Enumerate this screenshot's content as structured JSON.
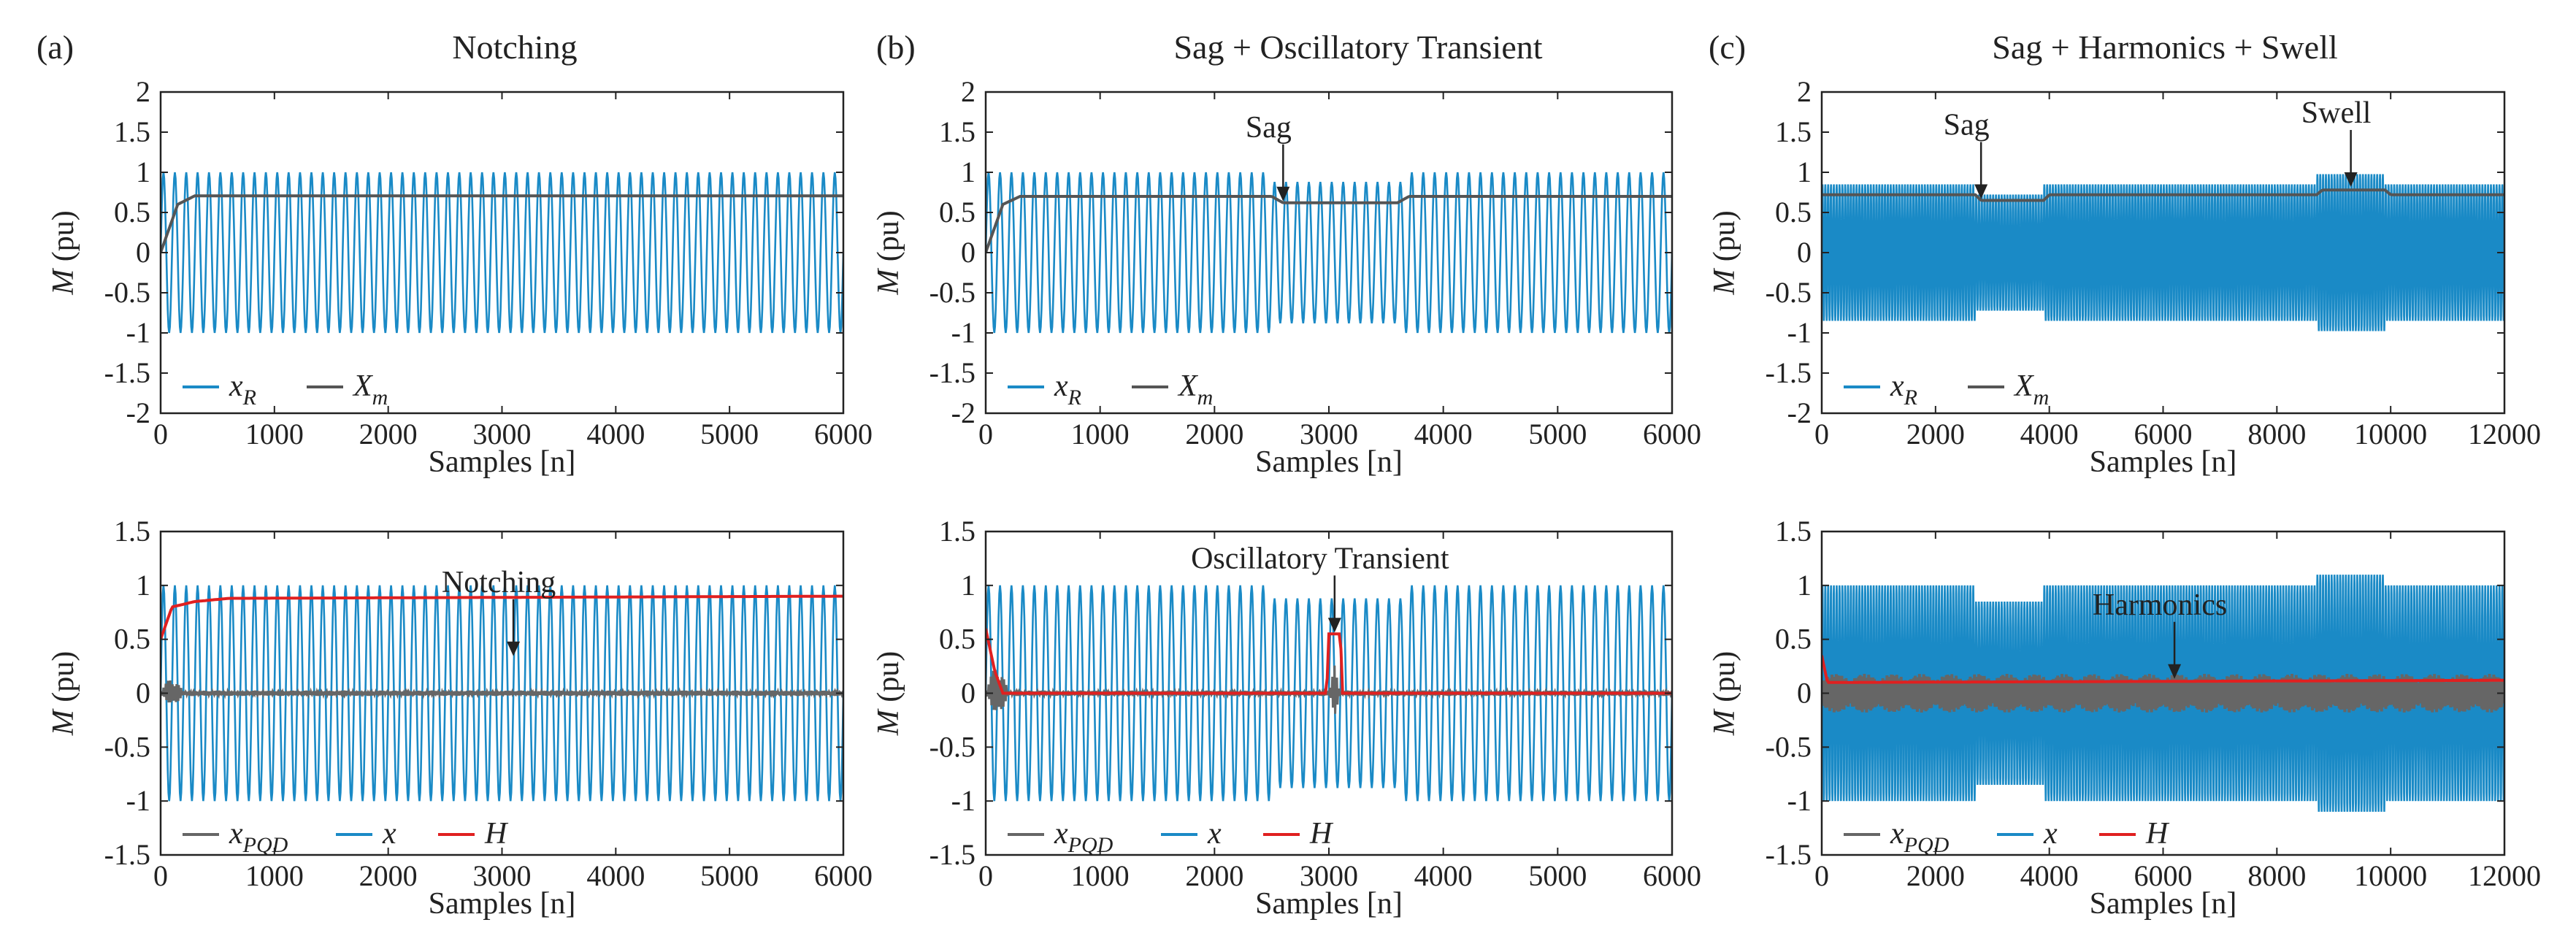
{
  "colors": {
    "xR": "#1a8ac6",
    "Xm": "#555555",
    "x": "#1a8ac6",
    "xPQD": "#666666",
    "H": "#e02020",
    "axis": "#222222"
  },
  "panels": [
    {
      "label": "(a)",
      "title": "Notching"
    },
    {
      "label": "(b)",
      "title": "Sag + Oscillatory Transient"
    },
    {
      "label": "(c)",
      "title": "Sag + Harmonics + Swell"
    }
  ],
  "legend_top": {
    "xR": "x",
    "xR_sub": "R",
    "Xm": "X",
    "Xm_sub": "m"
  },
  "legend_bottom": {
    "xPQD": "x",
    "xPQD_sub": "PQD",
    "x": "x",
    "H": "H"
  },
  "chart_data": [
    {
      "id": "a-top",
      "type": "line",
      "xlabel": "Samples [n]",
      "ylabel_italic": "M",
      "ylabel_rest": " (pu)",
      "xlim": [
        0,
        6000
      ],
      "ylim": [
        -2,
        2
      ],
      "xticks": [
        0,
        1000,
        2000,
        3000,
        4000,
        5000,
        6000
      ],
      "yticks": [
        2,
        1.5,
        1,
        0.5,
        0,
        -0.5,
        -1,
        -1.5,
        -2
      ],
      "series": [
        {
          "name": "xR",
          "kind": "sine",
          "amplitude": 1,
          "cycles": 60
        },
        {
          "name": "Xm",
          "kind": "envelope",
          "x": [
            0,
            150,
            300,
            6000
          ],
          "y": [
            0,
            0.6,
            0.707,
            0.707
          ]
        }
      ],
      "annotations": []
    },
    {
      "id": "a-bottom",
      "type": "line",
      "xlabel": "Samples [n]",
      "ylabel_italic": "M",
      "ylabel_rest": " (pu)",
      "xlim": [
        0,
        6000
      ],
      "ylim": [
        -1.5,
        1.5
      ],
      "xticks": [
        0,
        1000,
        2000,
        3000,
        4000,
        5000,
        6000
      ],
      "yticks": [
        1.5,
        1,
        0.5,
        0,
        -0.5,
        -1,
        -1.5
      ],
      "series": [
        {
          "name": "x",
          "kind": "sine",
          "amplitude": 1,
          "cycles": 60
        },
        {
          "name": "xPQD",
          "kind": "residual",
          "x": [
            0,
            100,
            200,
            6000
          ],
          "y": [
            0,
            0.15,
            0,
            0
          ]
        },
        {
          "name": "H",
          "kind": "envelope",
          "x": [
            0,
            100,
            300,
            600,
            6000
          ],
          "y": [
            0.5,
            0.8,
            0.85,
            0.88,
            0.9
          ]
        }
      ],
      "annotations": [
        {
          "text": "Notching",
          "x": 3100,
          "y": 0.33
        }
      ]
    },
    {
      "id": "b-top",
      "type": "line",
      "xlabel": "Samples [n]",
      "ylabel_italic": "M",
      "ylabel_rest": " (pu)",
      "xlim": [
        0,
        6000
      ],
      "ylim": [
        -2,
        2
      ],
      "xticks": [
        0,
        1000,
        2000,
        3000,
        4000,
        5000,
        6000
      ],
      "yticks": [
        2,
        1.5,
        1,
        0.5,
        0,
        -0.5,
        -1,
        -1.5,
        -2
      ],
      "series": [
        {
          "name": "xR",
          "kind": "sine",
          "amplitude": 1,
          "cycles": 60,
          "sag": [
            2500,
            3650,
            0.88
          ]
        },
        {
          "name": "Xm",
          "kind": "envelope",
          "x": [
            0,
            150,
            300,
            2500,
            2600,
            3600,
            3700,
            6000
          ],
          "y": [
            0,
            0.6,
            0.7,
            0.7,
            0.62,
            0.62,
            0.7,
            0.7
          ]
        }
      ],
      "annotations": [
        {
          "text": "Sag",
          "x": 2600,
          "y": 0.62
        }
      ]
    },
    {
      "id": "b-bottom",
      "type": "line",
      "xlabel": "Samples [n]",
      "ylabel_italic": "M",
      "ylabel_rest": " (pu)",
      "xlim": [
        0,
        6000
      ],
      "ylim": [
        -1.5,
        1.5
      ],
      "xticks": [
        0,
        1000,
        2000,
        3000,
        4000,
        5000,
        6000
      ],
      "yticks": [
        1.5,
        1,
        0.5,
        0,
        -0.5,
        -1,
        -1.5
      ],
      "series": [
        {
          "name": "x",
          "kind": "sine",
          "amplitude": 1,
          "cycles": 60,
          "sag": [
            2500,
            3650,
            0.88
          ]
        },
        {
          "name": "xPQD",
          "kind": "residual",
          "x": [
            0,
            100,
            200,
            3000,
            3050,
            3100,
            6000
          ],
          "y": [
            0,
            0.3,
            0,
            0,
            0.25,
            0,
            0
          ]
        },
        {
          "name": "H",
          "kind": "envelope",
          "x": [
            0,
            80,
            150,
            2980,
            3000,
            3100,
            3120,
            6000
          ],
          "y": [
            0.6,
            0.2,
            0,
            0,
            0.55,
            0.55,
            0,
            0
          ]
        }
      ],
      "annotations": [
        {
          "text": "Oscillatory Transient",
          "x": 3050,
          "y": 0.55
        }
      ]
    },
    {
      "id": "c-top",
      "type": "line",
      "xlabel": "Samples [n]",
      "ylabel_italic": "M",
      "ylabel_rest": " (pu)",
      "xlim": [
        0,
        12000
      ],
      "ylim": [
        -2,
        2
      ],
      "xticks": [
        0,
        2000,
        4000,
        6000,
        8000,
        10000,
        12000
      ],
      "yticks": [
        2,
        1.5,
        1,
        0.5,
        0,
        -0.5,
        -1,
        -1.5,
        -2
      ],
      "series": [
        {
          "name": "xR",
          "kind": "sine",
          "amplitude": 0.85,
          "cycles": 240,
          "sag": [
            2700,
            3900,
            0.85
          ],
          "swell": [
            8700,
            9900,
            1.15
          ]
        },
        {
          "name": "Xm",
          "kind": "envelope",
          "x": [
            0,
            100,
            2700,
            2800,
            3900,
            4000,
            8700,
            8800,
            9900,
            10000,
            12000
          ],
          "y": [
            0.72,
            0.72,
            0.72,
            0.65,
            0.65,
            0.72,
            0.72,
            0.78,
            0.78,
            0.72,
            0.72
          ]
        }
      ],
      "annotations": [
        {
          "text": "Sag",
          "x": 2800,
          "y": 0.65
        },
        {
          "text": "Swell",
          "x": 9300,
          "y": 0.8
        }
      ]
    },
    {
      "id": "c-bottom",
      "type": "line",
      "xlabel": "Samples [n]",
      "ylabel_italic": "M",
      "ylabel_rest": " (pu)",
      "xlim": [
        0,
        12000
      ],
      "ylim": [
        -1.5,
        1.5
      ],
      "xticks": [
        0,
        2000,
        4000,
        6000,
        8000,
        10000,
        12000
      ],
      "yticks": [
        1.5,
        1,
        0.5,
        0,
        -0.5,
        -1,
        -1.5
      ],
      "series": [
        {
          "name": "x",
          "kind": "sine",
          "amplitude": 1,
          "cycles": 240,
          "sag": [
            2700,
            3900,
            0.85
          ],
          "swell": [
            8700,
            9900,
            1.1
          ]
        },
        {
          "name": "xPQD",
          "kind": "band",
          "amplitude": 0.18
        },
        {
          "name": "H",
          "kind": "envelope",
          "x": [
            0,
            100,
            300,
            12000
          ],
          "y": [
            0.35,
            0.1,
            0.1,
            0.12
          ]
        }
      ],
      "annotations": [
        {
          "text": "Harmonics",
          "x": 6200,
          "y": 0.12
        }
      ]
    }
  ]
}
